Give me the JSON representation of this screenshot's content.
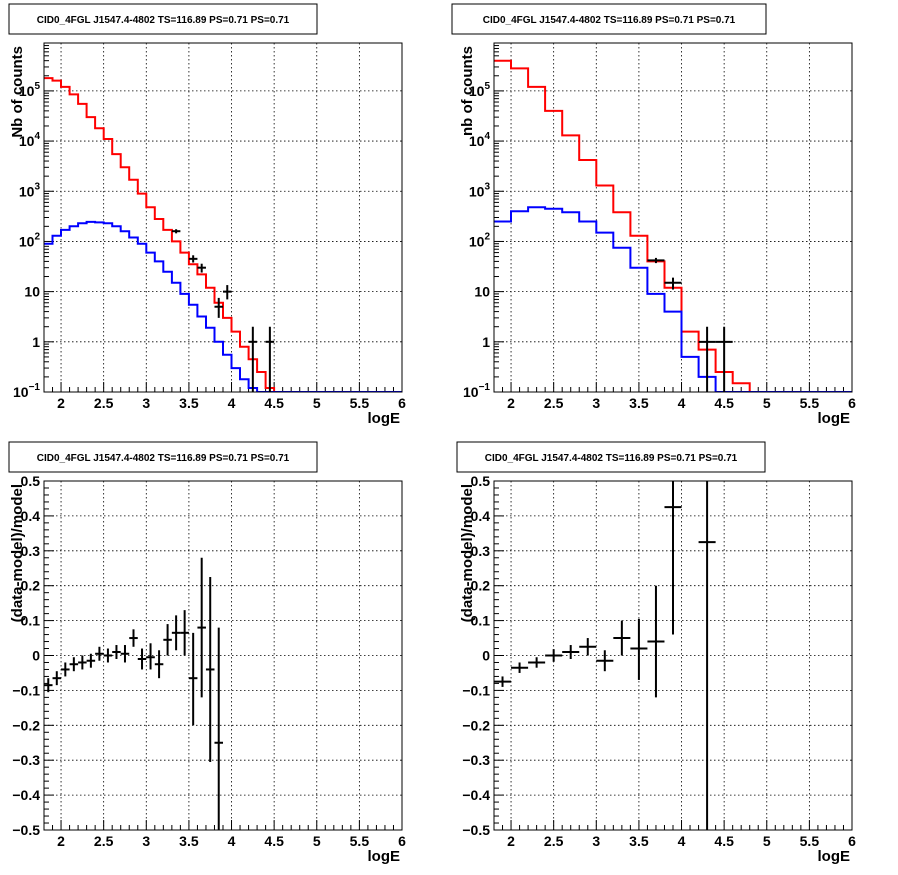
{
  "chart_data": [
    {
      "type": "line",
      "title": "CID0_4FGL J1547.4-4802 TS=116.89 PS=0.71 PS=0.71",
      "xlabel": "logE",
      "ylabel": "Nb of counts",
      "xlim": [
        1.8,
        6.0
      ],
      "ylim": [
        0.1,
        900000
      ],
      "yscale": "log",
      "grid": true,
      "xticks": [
        "2",
        "2.5",
        "3",
        "3.5",
        "4",
        "4.5",
        "5",
        "5.5",
        "6"
      ],
      "ytick_labels": [
        {
          "v": 0.1,
          "label": "10",
          "exp": "−1"
        },
        {
          "v": 1,
          "label": "1",
          "exp": ""
        },
        {
          "v": 10,
          "label": "10",
          "exp": ""
        },
        {
          "v": 100,
          "label": "10",
          "exp": "2"
        },
        {
          "v": 1000,
          "label": "10",
          "exp": "3"
        },
        {
          "v": 10000,
          "label": "10",
          "exp": "4"
        },
        {
          "v": 100000,
          "label": "10",
          "exp": "5"
        }
      ],
      "bin_edges": [
        1.8,
        1.9,
        2.0,
        2.1,
        2.2,
        2.3,
        2.4,
        2.5,
        2.6,
        2.7,
        2.8,
        2.9,
        3.0,
        3.1,
        3.2,
        3.3,
        3.4,
        3.5,
        3.6,
        3.7,
        3.8,
        3.9,
        4.0,
        4.1,
        4.2,
        4.3,
        4.4,
        4.5,
        4.6,
        4.7,
        4.8,
        4.9,
        5.0,
        5.1,
        5.2,
        5.3,
        5.4,
        5.5,
        5.6,
        5.7,
        5.8,
        5.9,
        6.0
      ],
      "series": [
        {
          "color": "#ff0000",
          "values": [
            180000,
            160000,
            120000,
            85000,
            55000,
            30000,
            18000,
            11000,
            5500,
            3000,
            1700,
            900,
            480,
            280,
            170,
            100,
            60,
            35,
            22,
            12,
            6,
            3,
            1.6,
            0.8,
            0.45,
            0.25,
            0.12,
            0.1,
            0.1,
            0.1,
            0.1,
            0.1,
            0.1,
            0.1,
            0.1,
            0.1,
            0.1,
            0.1,
            0.1,
            0.1,
            0.1,
            0.1
          ]
        },
        {
          "color": "#0000ff",
          "values": [
            90,
            130,
            170,
            200,
            230,
            245,
            240,
            230,
            200,
            160,
            120,
            90,
            60,
            40,
            25,
            15,
            9,
            5.5,
            3.2,
            1.9,
            1.0,
            0.55,
            0.3,
            0.18,
            0.12,
            0.1,
            0.1,
            0.1,
            0.1,
            0.1,
            0.1,
            0.1,
            0.1,
            0.1,
            0.1,
            0.1,
            0.1,
            0.1,
            0.1,
            0.1,
            0.1,
            0.1
          ]
        }
      ],
      "points": [
        {
          "x": 3.35,
          "y": 160,
          "xerr": 0.05,
          "ylo": 145,
          "yhi": 175
        },
        {
          "x": 3.55,
          "y": 45,
          "xerr": 0.05,
          "ylo": 38,
          "yhi": 53
        },
        {
          "x": 3.65,
          "y": 30,
          "xerr": 0.05,
          "ylo": 24,
          "yhi": 36
        },
        {
          "x": 3.85,
          "y": 5,
          "xerr": 0.05,
          "ylo": 3,
          "yhi": 7.5
        },
        {
          "x": 3.95,
          "y": 10,
          "xerr": 0.05,
          "ylo": 7,
          "yhi": 13.5
        },
        {
          "x": 4.25,
          "y": 1,
          "xerr": 0.05,
          "ylo": 0.1,
          "yhi": 2.0
        },
        {
          "x": 4.45,
          "y": 1,
          "xerr": 0.05,
          "ylo": 0.1,
          "yhi": 2.0
        }
      ]
    },
    {
      "type": "line",
      "title": "CID0_4FGL J1547.4-4802 TS=116.89 PS=0.71 PS=0.71",
      "xlabel": "logE",
      "ylabel": "nb of counts",
      "xlim": [
        1.8,
        6.0
      ],
      "ylim": [
        0.1,
        900000
      ],
      "yscale": "log",
      "grid": true,
      "xticks": [
        "2",
        "2.5",
        "3",
        "3.5",
        "4",
        "4.5",
        "5",
        "5.5",
        "6"
      ],
      "ytick_labels": [
        {
          "v": 0.1,
          "label": "10",
          "exp": "−1"
        },
        {
          "v": 1,
          "label": "1",
          "exp": ""
        },
        {
          "v": 10,
          "label": "10",
          "exp": ""
        },
        {
          "v": 100,
          "label": "10",
          "exp": "2"
        },
        {
          "v": 1000,
          "label": "10",
          "exp": "3"
        },
        {
          "v": 10000,
          "label": "10",
          "exp": "4"
        },
        {
          "v": 100000,
          "label": "10",
          "exp": "5"
        }
      ],
      "bin_edges": [
        1.8,
        2.0,
        2.2,
        2.4,
        2.6,
        2.8,
        3.0,
        3.2,
        3.4,
        3.6,
        3.8,
        4.0,
        4.2,
        4.4,
        4.6,
        4.8,
        5.0,
        5.2,
        5.4,
        5.6,
        5.8,
        6.0
      ],
      "series": [
        {
          "color": "#ff0000",
          "values": [
            400000,
            280000,
            120000,
            40000,
            13000,
            4200,
            1300,
            380,
            130,
            40,
            12,
            1.6,
            0.7,
            0.25,
            0.15,
            0.1,
            0.1,
            0.1,
            0.1,
            0.1,
            0.1
          ]
        },
        {
          "color": "#0000ff",
          "values": [
            250,
            400,
            480,
            450,
            380,
            250,
            150,
            75,
            30,
            9,
            4,
            0.5,
            0.2,
            0.1,
            0.1,
            0.1,
            0.1,
            0.1,
            0.1,
            0.1,
            0.1
          ]
        }
      ],
      "points": [
        {
          "x": 3.7,
          "y": 42,
          "xerr": 0.1,
          "ylo": 37,
          "yhi": 47
        },
        {
          "x": 3.9,
          "y": 15,
          "xerr": 0.1,
          "ylo": 11,
          "yhi": 19
        },
        {
          "x": 4.3,
          "y": 1,
          "xerr": 0.1,
          "ylo": 0.1,
          "yhi": 2.0
        },
        {
          "x": 4.5,
          "y": 1,
          "xerr": 0.1,
          "ylo": 0.1,
          "yhi": 2.0
        }
      ]
    },
    {
      "type": "scatter",
      "title": "CID0_4FGL J1547.4-4802 TS=116.89 PS=0.71 PS=0.71",
      "xlabel": "logE",
      "ylabel": "(data-model)/model",
      "xlim": [
        1.8,
        6.0
      ],
      "ylim": [
        -0.5,
        0.5
      ],
      "yscale": "linear",
      "grid": true,
      "xticks": [
        "2",
        "2.5",
        "3",
        "3.5",
        "4",
        "4.5",
        "5",
        "5.5",
        "6"
      ],
      "ytick_labels": [
        {
          "v": 0.5,
          "label": "0.5",
          "exp": ""
        },
        {
          "v": 0.4,
          "label": "0.4",
          "exp": ""
        },
        {
          "v": 0.3,
          "label": "0.3",
          "exp": ""
        },
        {
          "v": 0.2,
          "label": "0.2",
          "exp": ""
        },
        {
          "v": 0.1,
          "label": "0.1",
          "exp": ""
        },
        {
          "v": 0,
          "label": "0",
          "exp": ""
        },
        {
          "v": -0.1,
          "label": "−0.1",
          "exp": ""
        },
        {
          "v": -0.2,
          "label": "−0.2",
          "exp": ""
        },
        {
          "v": -0.3,
          "label": "−0.3",
          "exp": ""
        },
        {
          "v": -0.4,
          "label": "−0.4",
          "exp": ""
        },
        {
          "v": -0.5,
          "label": "−0.5",
          "exp": ""
        }
      ],
      "points": [
        {
          "x": 1.85,
          "y": -0.085,
          "xerr": 0.05,
          "ylo": -0.105,
          "yhi": -0.065
        },
        {
          "x": 1.95,
          "y": -0.065,
          "xerr": 0.05,
          "ylo": -0.085,
          "yhi": -0.045
        },
        {
          "x": 2.05,
          "y": -0.04,
          "xerr": 0.05,
          "ylo": -0.06,
          "yhi": -0.02
        },
        {
          "x": 2.15,
          "y": -0.025,
          "xerr": 0.05,
          "ylo": -0.045,
          "yhi": -0.005
        },
        {
          "x": 2.25,
          "y": -0.02,
          "xerr": 0.05,
          "ylo": -0.04,
          "yhi": 0.0
        },
        {
          "x": 2.35,
          "y": -0.015,
          "xerr": 0.05,
          "ylo": -0.035,
          "yhi": 0.005
        },
        {
          "x": 2.45,
          "y": 0.005,
          "xerr": 0.05,
          "ylo": -0.015,
          "yhi": 0.025
        },
        {
          "x": 2.55,
          "y": 0.0,
          "xerr": 0.05,
          "ylo": -0.02,
          "yhi": 0.02
        },
        {
          "x": 2.65,
          "y": 0.01,
          "xerr": 0.05,
          "ylo": -0.01,
          "yhi": 0.03
        },
        {
          "x": 2.75,
          "y": 0.005,
          "xerr": 0.05,
          "ylo": -0.02,
          "yhi": 0.03
        },
        {
          "x": 2.85,
          "y": 0.05,
          "xerr": 0.05,
          "ylo": 0.025,
          "yhi": 0.075
        },
        {
          "x": 2.95,
          "y": -0.01,
          "xerr": 0.05,
          "ylo": -0.04,
          "yhi": 0.02
        },
        {
          "x": 3.05,
          "y": -0.005,
          "xerr": 0.05,
          "ylo": -0.04,
          "yhi": 0.035
        },
        {
          "x": 3.15,
          "y": -0.025,
          "xerr": 0.05,
          "ylo": -0.065,
          "yhi": 0.015
        },
        {
          "x": 3.25,
          "y": 0.045,
          "xerr": 0.05,
          "ylo": 0.0,
          "yhi": 0.09
        },
        {
          "x": 3.35,
          "y": 0.065,
          "xerr": 0.05,
          "ylo": 0.015,
          "yhi": 0.115
        },
        {
          "x": 3.45,
          "y": 0.065,
          "xerr": 0.05,
          "ylo": 0.0,
          "yhi": 0.13
        },
        {
          "x": 3.55,
          "y": -0.065,
          "xerr": 0.05,
          "ylo": -0.2,
          "yhi": 0.065
        },
        {
          "x": 3.65,
          "y": 0.08,
          "xerr": 0.05,
          "ylo": -0.12,
          "yhi": 0.28
        },
        {
          "x": 3.75,
          "y": -0.04,
          "xerr": 0.05,
          "ylo": -0.305,
          "yhi": 0.225
        },
        {
          "x": 3.85,
          "y": -0.25,
          "xerr": 0.05,
          "ylo": -0.5,
          "yhi": 0.08
        }
      ]
    },
    {
      "type": "scatter",
      "title": "CID0_4FGL J1547.4-4802 TS=116.89 PS=0.71 PS=0.71",
      "xlabel": "logE",
      "ylabel": "(data-model)/model",
      "xlim": [
        1.8,
        6.0
      ],
      "ylim": [
        -0.5,
        0.5
      ],
      "yscale": "linear",
      "grid": true,
      "xticks": [
        "2",
        "2.5",
        "3",
        "3.5",
        "4",
        "4.5",
        "5",
        "5.5",
        "6"
      ],
      "ytick_labels": [
        {
          "v": 0.5,
          "label": "0.5",
          "exp": ""
        },
        {
          "v": 0.4,
          "label": "0.4",
          "exp": ""
        },
        {
          "v": 0.3,
          "label": "0.3",
          "exp": ""
        },
        {
          "v": 0.2,
          "label": "0.2",
          "exp": ""
        },
        {
          "v": 0.1,
          "label": "0.1",
          "exp": ""
        },
        {
          "v": 0,
          "label": "0",
          "exp": ""
        },
        {
          "v": -0.1,
          "label": "−0.1",
          "exp": ""
        },
        {
          "v": -0.2,
          "label": "−0.2",
          "exp": ""
        },
        {
          "v": -0.3,
          "label": "−0.3",
          "exp": ""
        },
        {
          "v": -0.4,
          "label": "−0.4",
          "exp": ""
        },
        {
          "v": -0.5,
          "label": "−0.5",
          "exp": ""
        }
      ],
      "points": [
        {
          "x": 1.9,
          "y": -0.075,
          "xerr": 0.1,
          "ylo": -0.09,
          "yhi": -0.06
        },
        {
          "x": 2.1,
          "y": -0.035,
          "xerr": 0.1,
          "ylo": -0.05,
          "yhi": -0.02
        },
        {
          "x": 2.3,
          "y": -0.02,
          "xerr": 0.1,
          "ylo": -0.035,
          "yhi": -0.005
        },
        {
          "x": 2.5,
          "y": 0.0,
          "xerr": 0.1,
          "ylo": -0.018,
          "yhi": 0.018
        },
        {
          "x": 2.7,
          "y": 0.01,
          "xerr": 0.1,
          "ylo": -0.01,
          "yhi": 0.03
        },
        {
          "x": 2.9,
          "y": 0.025,
          "xerr": 0.1,
          "ylo": 0.0,
          "yhi": 0.05
        },
        {
          "x": 3.1,
          "y": -0.015,
          "xerr": 0.1,
          "ylo": -0.045,
          "yhi": 0.015
        },
        {
          "x": 3.3,
          "y": 0.05,
          "xerr": 0.1,
          "ylo": 0.0,
          "yhi": 0.1
        },
        {
          "x": 3.5,
          "y": 0.02,
          "xerr": 0.1,
          "ylo": -0.07,
          "yhi": 0.105
        },
        {
          "x": 3.7,
          "y": 0.04,
          "xerr": 0.1,
          "ylo": -0.12,
          "yhi": 0.2
        },
        {
          "x": 3.9,
          "y": 0.425,
          "xerr": 0.1,
          "ylo": 0.06,
          "yhi": 0.5
        },
        {
          "x": 4.3,
          "y": 0.325,
          "xerr": 0.1,
          "ylo": -0.5,
          "yhi": 0.5
        }
      ]
    }
  ]
}
